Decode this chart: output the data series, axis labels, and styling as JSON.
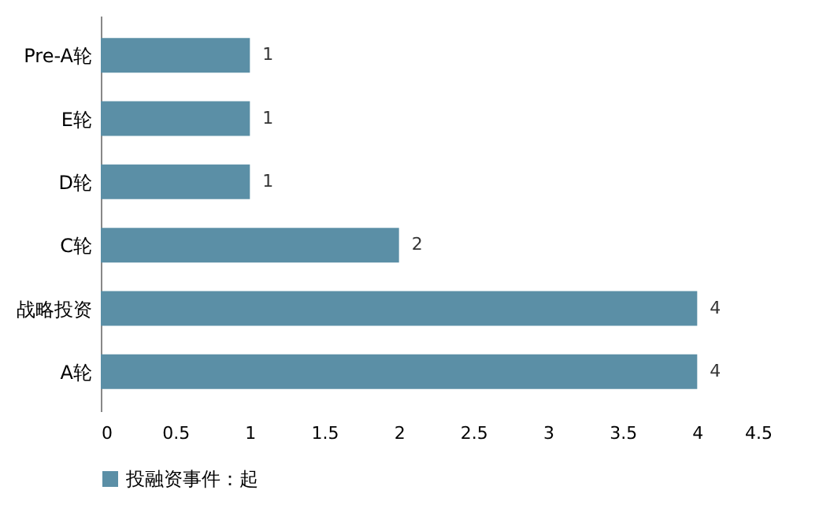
{
  "chart_data": {
    "type": "bar",
    "orientation": "horizontal",
    "categories": [
      "Pre-A轮",
      "E轮",
      "D轮",
      "C轮",
      "战略投资",
      "A轮"
    ],
    "series": [
      {
        "name": "投融资事件：起",
        "color": "#5b8fa6",
        "values": [
          1,
          1,
          1,
          2,
          4,
          4
        ]
      }
    ],
    "xlim": [
      0,
      4.5
    ],
    "xticks": [
      0,
      0.5,
      1,
      1.5,
      2,
      2.5,
      3,
      3.5,
      4,
      4.5
    ],
    "data_labels": true,
    "legend": "bottom",
    "grid": false
  }
}
